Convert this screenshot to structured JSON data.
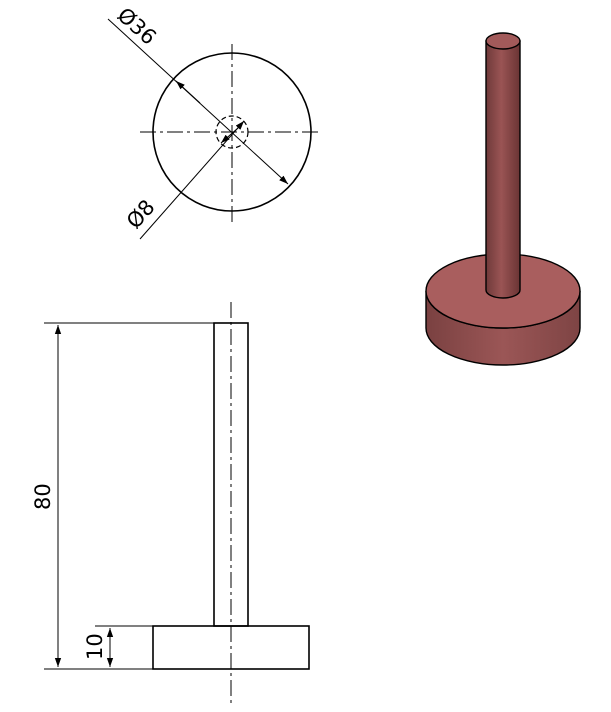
{
  "dimensions": {
    "outer_diameter": "Ø36",
    "inner_diameter": "Ø8",
    "total_height": "80",
    "base_height": "10"
  },
  "colors": {
    "line": "#000000",
    "model_side": "#8a4a4a",
    "model_top": "#b06262",
    "model_pin": "#8d4c4c"
  }
}
